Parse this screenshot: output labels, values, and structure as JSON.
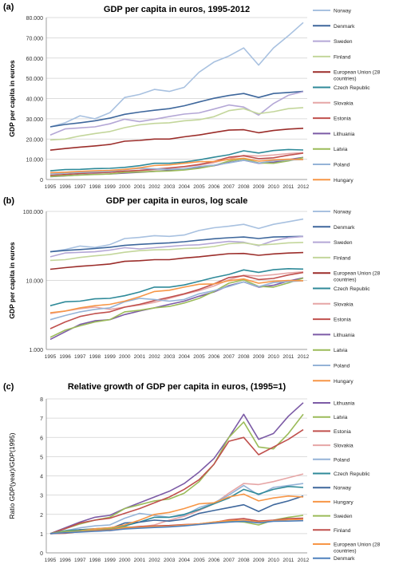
{
  "chart_data": [
    {
      "panel_label": "(a)",
      "type": "line",
      "title": "GDP per capita in euros, 1995-2012",
      "ylabel": "GDP per capita in euros",
      "xlabel": "",
      "x": [
        "1995",
        "1996",
        "1997",
        "1998",
        "1999",
        "2000",
        "2001",
        "2002",
        "2003",
        "2004",
        "2005",
        "2006",
        "2007",
        "2008",
        "2009",
        "2010",
        "2011",
        "2012"
      ],
      "yscale": "linear",
      "ylim": [
        0,
        80000
      ],
      "yticks": [
        0,
        10000,
        20000,
        30000,
        40000,
        50000,
        60000,
        70000,
        80000
      ],
      "ytick_labels": [
        "0",
        "10.000",
        "20.000",
        "30.000",
        "40.000",
        "50.000",
        "60.000",
        "70.000",
        "80.000"
      ],
      "grid": "horizontal",
      "legend_position": "right",
      "series": [
        {
          "name": "Norway",
          "color": "#a8c1e0",
          "values": [
            26000,
            28000,
            31500,
            30000,
            33000,
            40500,
            42000,
            44500,
            43500,
            45500,
            53000,
            58000,
            61000,
            65000,
            56500,
            65000,
            71000,
            77500
          ]
        },
        {
          "name": "Denmark",
          "color": "#3e679c",
          "values": [
            26000,
            27200,
            28000,
            29000,
            30300,
            32200,
            33300,
            34200,
            35000,
            36400,
            38300,
            40100,
            41500,
            42500,
            40500,
            42500,
            43000,
            43500
          ]
        },
        {
          "name": "Sweden",
          "color": "#b4a7d6",
          "values": [
            22000,
            25000,
            25500,
            26000,
            27500,
            29800,
            28600,
            29800,
            31100,
            32300,
            32900,
            34800,
            36800,
            35800,
            31800,
            37500,
            41600,
            43400
          ]
        },
        {
          "name": "Finland",
          "color": "#c3d69b",
          "values": [
            19500,
            20000,
            21500,
            22700,
            23700,
            25600,
            27000,
            27700,
            28000,
            29000,
            29500,
            31000,
            34000,
            35000,
            32500,
            33500,
            35000,
            35500
          ]
        },
        {
          "name": "European Union (28 countries)",
          "color": "#9b2d2a",
          "values": [
            14500,
            15300,
            16000,
            16600,
            17300,
            18900,
            19300,
            20000,
            20000,
            21100,
            22000,
            23200,
            24400,
            24600,
            23100,
            24200,
            24900,
            25300
          ]
        },
        {
          "name": "Czech Republic",
          "color": "#2f8a99",
          "values": [
            4300,
            4900,
            5000,
            5400,
            5500,
            6000,
            6800,
            8000,
            8000,
            8600,
            9700,
            11000,
            12200,
            14200,
            13100,
            14300,
            14800,
            14600
          ]
        },
        {
          "name": "Slovakia",
          "color": "#e6a6a6",
          "values": [
            3300,
            3600,
            3900,
            4100,
            3800,
            4100,
            4400,
            4800,
            5500,
            6300,
            7100,
            8300,
            10200,
            11900,
            11600,
            12100,
            12800,
            13300
          ]
        },
        {
          "name": "Estonia",
          "color": "#c0504d",
          "values": [
            2000,
            2500,
            3000,
            3300,
            3500,
            4100,
            4500,
            5100,
            5700,
            6400,
            7400,
            8900,
            11000,
            11700,
            10300,
            10700,
            12000,
            13000
          ]
        },
        {
          "name": "Lithuania",
          "color": "#7c5ba6",
          "values": [
            1400,
            1800,
            2300,
            2600,
            2700,
            3200,
            3600,
            4000,
            4500,
            5000,
            5900,
            6800,
            8400,
            9500,
            8000,
            8500,
            9800,
            10900
          ]
        },
        {
          "name": "Latvia",
          "color": "#9bbb59",
          "values": [
            1500,
            1900,
            2200,
            2500,
            2700,
            3500,
            3700,
            4000,
            4200,
            4700,
            5500,
            6900,
            9100,
            10200,
            8200,
            8000,
            9200,
            10800
          ]
        },
        {
          "name": "Poland",
          "color": "#95b3d7",
          "values": [
            2700,
            3100,
            3500,
            3800,
            4000,
            4900,
            5500,
            5300,
            5000,
            5300,
            6400,
            7100,
            8200,
            9500,
            8100,
            9300,
            9600,
            9900
          ]
        },
        {
          "name": "Hungary",
          "color": "#f79646",
          "values": [
            3400,
            3600,
            4000,
            4300,
            4500,
            5000,
            5800,
            6900,
            7200,
            8000,
            8800,
            8900,
            9900,
            10500,
            9100,
            9700,
            10000,
            9900
          ]
        }
      ]
    },
    {
      "panel_label": "(b)",
      "type": "line",
      "title": "GDP per capita in euros, log scale",
      "ylabel": "GDP per capita in euros",
      "xlabel": "",
      "x": [
        "1995",
        "1996",
        "1997",
        "1998",
        "1999",
        "2000",
        "2001",
        "2002",
        "2003",
        "2004",
        "2005",
        "2006",
        "2007",
        "2008",
        "2009",
        "2010",
        "2011",
        "2012"
      ],
      "yscale": "log",
      "ylim": [
        1000,
        100000
      ],
      "yticks": [
        1000,
        10000,
        100000
      ],
      "ytick_labels": [
        "1.000",
        "10.000",
        "100.000"
      ],
      "grid": "horizontal",
      "legend_position": "right",
      "series": [
        {
          "name": "Norway",
          "color": "#a8c1e0",
          "values": [
            26000,
            28000,
            31500,
            30000,
            33000,
            40500,
            42000,
            44500,
            43500,
            45500,
            53000,
            58000,
            61000,
            65000,
            56500,
            65000,
            71000,
            77500
          ]
        },
        {
          "name": "Denmark",
          "color": "#3e679c",
          "values": [
            26000,
            27200,
            28000,
            29000,
            30300,
            32200,
            33300,
            34200,
            35000,
            36400,
            38300,
            40100,
            41500,
            42500,
            40500,
            42500,
            43000,
            43500
          ]
        },
        {
          "name": "Sweden",
          "color": "#b4a7d6",
          "values": [
            22000,
            25000,
            25500,
            26000,
            27500,
            29800,
            28600,
            29800,
            31100,
            32300,
            32900,
            34800,
            36800,
            35800,
            31800,
            37500,
            41600,
            43400
          ]
        },
        {
          "name": "Finland",
          "color": "#c3d69b",
          "values": [
            19500,
            20000,
            21500,
            22700,
            23700,
            25600,
            27000,
            27700,
            28000,
            29000,
            29500,
            31000,
            34000,
            35000,
            32500,
            33500,
            35000,
            35500
          ]
        },
        {
          "name": "European Union (28 countries)",
          "color": "#9b2d2a",
          "values": [
            14500,
            15300,
            16000,
            16600,
            17300,
            18900,
            19300,
            20000,
            20000,
            21100,
            22000,
            23200,
            24400,
            24600,
            23100,
            24200,
            24900,
            25300
          ]
        },
        {
          "name": "Czech Republic",
          "color": "#2f8a99",
          "values": [
            4300,
            4900,
            5000,
            5400,
            5500,
            6000,
            6800,
            8000,
            8000,
            8600,
            9700,
            11000,
            12200,
            14200,
            13100,
            14300,
            14800,
            14600
          ]
        },
        {
          "name": "Slovakia",
          "color": "#e6a6a6",
          "values": [
            3300,
            3600,
            3900,
            4100,
            3800,
            4100,
            4400,
            4800,
            5500,
            6300,
            7100,
            8300,
            10200,
            11900,
            11600,
            12100,
            12800,
            13300
          ]
        },
        {
          "name": "Estonia",
          "color": "#c0504d",
          "values": [
            2000,
            2500,
            3000,
            3300,
            3500,
            4100,
            4500,
            5100,
            5700,
            6400,
            7400,
            8900,
            11000,
            11700,
            10300,
            10700,
            12000,
            13000
          ]
        },
        {
          "name": "Lithuania",
          "color": "#7c5ba6",
          "values": [
            1400,
            1800,
            2300,
            2600,
            2700,
            3200,
            3600,
            4000,
            4500,
            5000,
            5900,
            6800,
            8400,
            9500,
            8000,
            8500,
            9800,
            10900
          ]
        },
        {
          "name": "Latvia",
          "color": "#9bbb59",
          "values": [
            1500,
            1900,
            2200,
            2500,
            2700,
            3500,
            3700,
            4000,
            4200,
            4700,
            5500,
            6900,
            9100,
            10200,
            8200,
            8000,
            9200,
            10800
          ]
        },
        {
          "name": "Poland",
          "color": "#95b3d7",
          "values": [
            2700,
            3100,
            3500,
            3800,
            4000,
            4900,
            5500,
            5300,
            5000,
            5300,
            6400,
            7100,
            8200,
            9500,
            8100,
            9300,
            9600,
            9900
          ]
        },
        {
          "name": "Hungary",
          "color": "#f79646",
          "values": [
            3400,
            3600,
            4000,
            4300,
            4500,
            5000,
            5800,
            6900,
            7200,
            8000,
            8800,
            8900,
            9900,
            10500,
            9100,
            9700,
            10000,
            9900
          ]
        }
      ]
    },
    {
      "panel_label": "(c)",
      "type": "line",
      "title": "Relative growth of GDP per capita in euros, (1995=1)",
      "ylabel": "Ratio GDP(year)/GDP(1995)",
      "xlabel": "",
      "x": [
        "1995",
        "1996",
        "1997",
        "1998",
        "1999",
        "2000",
        "2001",
        "2002",
        "2003",
        "2004",
        "2005",
        "2006",
        "2007",
        "2008",
        "2009",
        "2010",
        "2011",
        "2012"
      ],
      "yscale": "linear",
      "ylim": [
        0,
        8
      ],
      "yticks": [
        0,
        1,
        2,
        3,
        4,
        5,
        6,
        7,
        8
      ],
      "ytick_labels": [
        "0",
        "1",
        "2",
        "3",
        "4",
        "5",
        "6",
        "7",
        "8"
      ],
      "grid": "horizontal",
      "legend_position": "right",
      "series": [
        {
          "name": "Lithuania",
          "color": "#7c5ba6",
          "values": [
            1,
            1.3,
            1.6,
            1.85,
            1.95,
            2.3,
            2.6,
            2.9,
            3.2,
            3.6,
            4.2,
            4.9,
            6.0,
            7.2,
            5.9,
            6.2,
            7.1,
            7.8
          ]
        },
        {
          "name": "Latvia",
          "color": "#9bbb59",
          "values": [
            1,
            1.25,
            1.5,
            1.7,
            1.85,
            2.3,
            2.5,
            2.7,
            2.8,
            3.1,
            3.7,
            4.6,
            6.0,
            6.8,
            5.5,
            5.4,
            6.2,
            7.2
          ]
        },
        {
          "name": "Estonia",
          "color": "#c0504d",
          "values": [
            1,
            1.25,
            1.55,
            1.7,
            1.8,
            2.05,
            2.3,
            2.6,
            2.9,
            3.3,
            3.8,
            4.6,
            5.8,
            6.0,
            5.1,
            5.5,
            5.9,
            6.4
          ]
        },
        {
          "name": "Slovakia",
          "color": "#e6a6a6",
          "values": [
            1,
            1.1,
            1.2,
            1.25,
            1.15,
            1.25,
            1.35,
            1.45,
            1.7,
            1.9,
            2.2,
            2.55,
            3.1,
            3.6,
            3.55,
            3.7,
            3.9,
            4.1
          ]
        },
        {
          "name": "Poland",
          "color": "#95b3d7",
          "values": [
            1,
            1.15,
            1.3,
            1.4,
            1.45,
            1.8,
            2.05,
            1.95,
            1.85,
            1.95,
            2.35,
            2.6,
            3.0,
            3.5,
            3.0,
            3.4,
            3.5,
            3.6
          ]
        },
        {
          "name": "Czech Republic",
          "color": "#2f8a99",
          "values": [
            1,
            1.15,
            1.2,
            1.25,
            1.3,
            1.4,
            1.6,
            1.85,
            1.85,
            2.0,
            2.25,
            2.55,
            2.85,
            3.3,
            3.05,
            3.3,
            3.45,
            3.4
          ]
        },
        {
          "name": "Norway",
          "color": "#3e679c",
          "values": [
            1,
            1.08,
            1.2,
            1.15,
            1.25,
            1.55,
            1.6,
            1.7,
            1.65,
            1.75,
            2.05,
            2.2,
            2.35,
            2.5,
            2.15,
            2.5,
            2.7,
            2.95
          ]
        },
        {
          "name": "Hungary",
          "color": "#f79646",
          "values": [
            1,
            1.05,
            1.15,
            1.25,
            1.3,
            1.45,
            1.7,
            2.0,
            2.1,
            2.3,
            2.55,
            2.6,
            2.9,
            3.05,
            2.7,
            2.85,
            2.95,
            2.9
          ]
        },
        {
          "name": "Sweden",
          "color": "#9bbb59",
          "values": [
            1,
            1.12,
            1.15,
            1.18,
            1.25,
            1.35,
            1.3,
            1.35,
            1.4,
            1.45,
            1.5,
            1.6,
            1.65,
            1.6,
            1.45,
            1.7,
            1.85,
            1.95
          ]
        },
        {
          "name": "Finland",
          "color": "#c0504d",
          "values": [
            1,
            1.02,
            1.1,
            1.16,
            1.2,
            1.3,
            1.37,
            1.4,
            1.42,
            1.47,
            1.5,
            1.58,
            1.72,
            1.78,
            1.65,
            1.7,
            1.78,
            1.8
          ]
        },
        {
          "name": "European Union (28 countries)",
          "color": "#f79646",
          "values": [
            1,
            1.05,
            1.1,
            1.15,
            1.18,
            1.3,
            1.33,
            1.37,
            1.38,
            1.45,
            1.5,
            1.6,
            1.68,
            1.7,
            1.6,
            1.67,
            1.72,
            1.74
          ]
        },
        {
          "name": "Denmark",
          "color": "#4f81bd",
          "values": [
            1,
            1.05,
            1.08,
            1.12,
            1.16,
            1.24,
            1.28,
            1.32,
            1.35,
            1.4,
            1.47,
            1.54,
            1.6,
            1.64,
            1.56,
            1.64,
            1.65,
            1.67
          ]
        }
      ]
    }
  ]
}
